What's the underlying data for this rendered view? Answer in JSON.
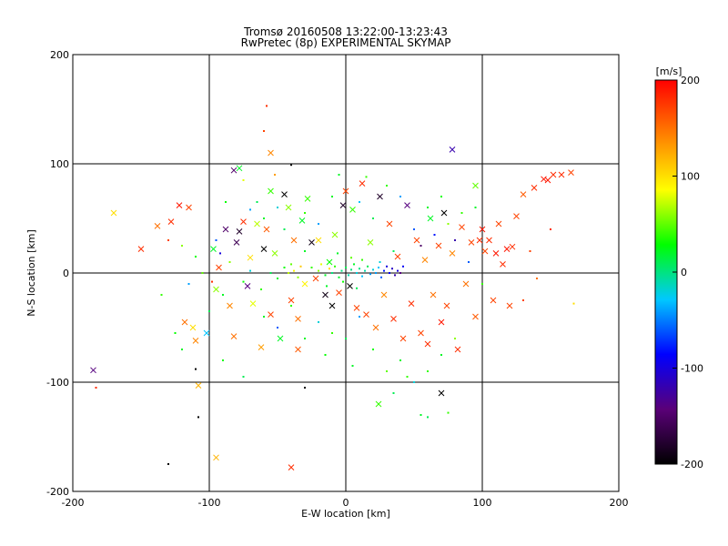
{
  "chart_data": {
    "type": "scatter",
    "title": "Tromsø 20160508 13:22:00-13:23:43",
    "subtitle": "RwPretec (8p) EXPERIMENTAL SKYMAP",
    "xlabel": "E-W location [km]",
    "ylabel": "N-S location [km]",
    "xlim": [
      -200,
      200
    ],
    "ylim": [
      -200,
      200
    ],
    "xticks": [
      "-200",
      "-100",
      "0",
      "100",
      "200"
    ],
    "yticks": [
      "-200",
      "-100",
      "0",
      "100",
      "200"
    ],
    "grid": true,
    "colorbar": {
      "label": "[m/s]",
      "range": [
        -200,
        200
      ],
      "ticks": [
        "200",
        "100",
        "0",
        "-100",
        "-200"
      ],
      "colors": [
        "#000000",
        "#5a0078",
        "#0000ff",
        "#00c8ff",
        "#00ff00",
        "#ffff00",
        "#ff8000",
        "#ff0000"
      ]
    },
    "series": [
      {
        "marker": "x",
        "points": [
          [
            -185,
            -89,
            -140
          ],
          [
            -170,
            55,
            100
          ],
          [
            -150,
            22,
            180
          ],
          [
            -138,
            43,
            150
          ],
          [
            -128,
            47,
            180
          ],
          [
            -122,
            62,
            190
          ],
          [
            -115,
            60,
            170
          ],
          [
            -118,
            -45,
            150
          ],
          [
            -112,
            -50,
            100
          ],
          [
            -110,
            -62,
            140
          ],
          [
            -108,
            -103,
            120
          ],
          [
            -102,
            -55,
            -30
          ],
          [
            -97,
            22,
            20
          ],
          [
            -95,
            -15,
            60
          ],
          [
            -93,
            5,
            170
          ],
          [
            -88,
            40,
            -150
          ],
          [
            -85,
            -30,
            140
          ],
          [
            -82,
            -58,
            150
          ],
          [
            -80,
            28,
            -160
          ],
          [
            -78,
            38,
            -180
          ],
          [
            -75,
            47,
            180
          ],
          [
            -72,
            -12,
            -140
          ],
          [
            -70,
            14,
            100
          ],
          [
            -68,
            -28,
            80
          ],
          [
            -65,
            45,
            70
          ],
          [
            -62,
            -68,
            130
          ],
          [
            -60,
            22,
            -200
          ],
          [
            -58,
            40,
            160
          ],
          [
            -55,
            -38,
            170
          ],
          [
            -52,
            18,
            60
          ],
          [
            -48,
            -60,
            20
          ],
          [
            -45,
            72,
            -200
          ],
          [
            -42,
            60,
            60
          ],
          [
            -40,
            -25,
            170
          ],
          [
            -38,
            30,
            150
          ],
          [
            -35,
            -70,
            160
          ],
          [
            -32,
            48,
            20
          ],
          [
            -30,
            -10,
            90
          ],
          [
            -28,
            68,
            40
          ],
          [
            -25,
            28,
            -190
          ],
          [
            -22,
            -5,
            170
          ],
          [
            -20,
            30,
            100
          ],
          [
            -15,
            -20,
            -190
          ],
          [
            -12,
            10,
            30
          ],
          [
            -10,
            -30,
            -200
          ],
          [
            -8,
            35,
            60
          ],
          [
            -5,
            -18,
            170
          ],
          [
            -2,
            62,
            -180
          ],
          [
            0,
            75,
            170
          ],
          [
            3,
            -12,
            -200
          ],
          [
            5,
            58,
            40
          ],
          [
            8,
            -32,
            170
          ],
          [
            12,
            82,
            180
          ],
          [
            15,
            -38,
            170
          ],
          [
            18,
            28,
            60
          ],
          [
            22,
            -50,
            150
          ],
          [
            25,
            70,
            -180
          ],
          [
            28,
            -20,
            140
          ],
          [
            32,
            45,
            170
          ],
          [
            35,
            -42,
            180
          ],
          [
            38,
            15,
            170
          ],
          [
            42,
            -60,
            170
          ],
          [
            45,
            62,
            -140
          ],
          [
            48,
            -28,
            180
          ],
          [
            52,
            30,
            170
          ],
          [
            55,
            -55,
            170
          ],
          [
            58,
            12,
            140
          ],
          [
            60,
            -65,
            180
          ],
          [
            62,
            50,
            20
          ],
          [
            64,
            -20,
            150
          ],
          [
            68,
            25,
            170
          ],
          [
            70,
            -45,
            190
          ],
          [
            72,
            55,
            -200
          ],
          [
            74,
            -30,
            170
          ],
          [
            78,
            18,
            140
          ],
          [
            78,
            113,
            -120
          ],
          [
            82,
            -70,
            180
          ],
          [
            85,
            42,
            170
          ],
          [
            88,
            -10,
            150
          ],
          [
            92,
            28,
            170
          ],
          [
            95,
            -40,
            160
          ],
          [
            98,
            30,
            180
          ],
          [
            100,
            40,
            190
          ],
          [
            102,
            20,
            170
          ],
          [
            105,
            30,
            180
          ],
          [
            108,
            -25,
            170
          ],
          [
            110,
            18,
            190
          ],
          [
            112,
            45,
            170
          ],
          [
            115,
            8,
            180
          ],
          [
            118,
            22,
            190
          ],
          [
            120,
            -30,
            170
          ],
          [
            122,
            24,
            180
          ],
          [
            125,
            52,
            170
          ],
          [
            130,
            72,
            160
          ],
          [
            138,
            78,
            180
          ],
          [
            145,
            86,
            190
          ],
          [
            148,
            85,
            190
          ],
          [
            152,
            90,
            180
          ],
          [
            158,
            90,
            180
          ],
          [
            165,
            92,
            170
          ],
          [
            95,
            80,
            50
          ],
          [
            -55,
            110,
            140
          ],
          [
            -40,
            -178,
            180
          ],
          [
            -95,
            -169,
            120
          ],
          [
            24,
            -120,
            40
          ],
          [
            -82,
            94,
            -150
          ],
          [
            -78,
            96,
            20
          ],
          [
            -55,
            75,
            40
          ],
          [
            70,
            -110,
            -200
          ],
          [
            -35,
            -42,
            150
          ]
        ]
      },
      {
        "marker": "dot",
        "points": [
          [
            -183,
            -105,
            180
          ],
          [
            -130,
            -175,
            -200
          ],
          [
            -108,
            -132,
            -200
          ],
          [
            -98,
            -8,
            180
          ],
          [
            -92,
            18,
            -100
          ],
          [
            -60,
            130,
            170
          ],
          [
            -58,
            153,
            180
          ],
          [
            -40,
            99,
            -200
          ],
          [
            -52,
            90,
            130
          ],
          [
            -75,
            85,
            80
          ],
          [
            -30,
            20,
            20
          ],
          [
            -25,
            5,
            40
          ],
          [
            -20,
            2,
            60
          ],
          [
            -18,
            8,
            80
          ],
          [
            -15,
            -2,
            20
          ],
          [
            -12,
            4,
            100
          ],
          [
            -10,
            0,
            0
          ],
          [
            -8,
            6,
            40
          ],
          [
            -5,
            -4,
            20
          ],
          [
            -3,
            2,
            0
          ],
          [
            0,
            5,
            10
          ],
          [
            2,
            -2,
            -10
          ],
          [
            4,
            3,
            0
          ],
          [
            6,
            8,
            20
          ],
          [
            8,
            0,
            -20
          ],
          [
            10,
            4,
            0
          ],
          [
            12,
            -3,
            -30
          ],
          [
            14,
            2,
            -10
          ],
          [
            16,
            6,
            10
          ],
          [
            18,
            -1,
            -40
          ],
          [
            20,
            3,
            -20
          ],
          [
            22,
            0,
            -40
          ],
          [
            24,
            5,
            -30
          ],
          [
            26,
            -4,
            -60
          ],
          [
            28,
            2,
            -80
          ],
          [
            30,
            6,
            -100
          ],
          [
            32,
            0,
            -90
          ],
          [
            34,
            4,
            -110
          ],
          [
            36,
            -2,
            -120
          ],
          [
            38,
            2,
            -100
          ],
          [
            40,
            0,
            -140
          ],
          [
            42,
            6,
            -90
          ],
          [
            -45,
            5,
            30
          ],
          [
            -42,
            0,
            70
          ],
          [
            -40,
            8,
            50
          ],
          [
            -38,
            2,
            90
          ],
          [
            -35,
            -4,
            60
          ],
          [
            -33,
            6,
            110
          ],
          [
            -50,
            -5,
            20
          ],
          [
            -55,
            0,
            10
          ],
          [
            -62,
            -15,
            40
          ],
          [
            -70,
            2,
            -20
          ],
          [
            -75,
            -8,
            30
          ],
          [
            -85,
            10,
            60
          ],
          [
            -90,
            -20,
            20
          ],
          [
            -95,
            30,
            -60
          ],
          [
            -100,
            -35,
            10
          ],
          [
            -105,
            0,
            50
          ],
          [
            -110,
            15,
            30
          ],
          [
            -115,
            -10,
            -40
          ],
          [
            -120,
            25,
            60
          ],
          [
            -125,
            -55,
            30
          ],
          [
            -130,
            30,
            170
          ],
          [
            -135,
            -20,
            40
          ],
          [
            -60,
            50,
            20
          ],
          [
            -50,
            60,
            -20
          ],
          [
            -45,
            40,
            10
          ],
          [
            -30,
            55,
            40
          ],
          [
            -20,
            45,
            -40
          ],
          [
            -10,
            70,
            20
          ],
          [
            10,
            65,
            -30
          ],
          [
            20,
            50,
            10
          ],
          [
            30,
            80,
            40
          ],
          [
            40,
            70,
            -40
          ],
          [
            50,
            40,
            -60
          ],
          [
            55,
            25,
            -150
          ],
          [
            60,
            60,
            20
          ],
          [
            65,
            35,
            -80
          ],
          [
            70,
            70,
            30
          ],
          [
            75,
            45,
            60
          ],
          [
            80,
            30,
            -120
          ],
          [
            85,
            55,
            40
          ],
          [
            90,
            10,
            -60
          ],
          [
            95,
            60,
            20
          ],
          [
            100,
            -10,
            40
          ],
          [
            -60,
            -40,
            20
          ],
          [
            -50,
            -50,
            -60
          ],
          [
            -40,
            -30,
            40
          ],
          [
            -30,
            -60,
            20
          ],
          [
            -20,
            -45,
            -20
          ],
          [
            -10,
            -55,
            40
          ],
          [
            0,
            -60,
            10
          ],
          [
            10,
            -40,
            -40
          ],
          [
            20,
            -70,
            30
          ],
          [
            30,
            -90,
            50
          ],
          [
            40,
            -80,
            20
          ],
          [
            50,
            -100,
            -20
          ],
          [
            60,
            -90,
            40
          ],
          [
            70,
            -75,
            20
          ],
          [
            80,
            -60,
            60
          ],
          [
            55,
            -130,
            20
          ],
          [
            60,
            -132,
            10
          ],
          [
            75,
            -128,
            40
          ],
          [
            -30,
            -105,
            -200
          ],
          [
            -75,
            -95,
            10
          ],
          [
            -90,
            -80,
            30
          ],
          [
            -110,
            -88,
            -200
          ],
          [
            -120,
            -70,
            20
          ],
          [
            167,
            -28,
            100
          ],
          [
            150,
            40,
            180
          ],
          [
            135,
            20,
            170
          ],
          [
            140,
            -5,
            150
          ],
          [
            130,
            -25,
            170
          ],
          [
            45,
            -95,
            40
          ],
          [
            35,
            -110,
            10
          ],
          [
            -70,
            58,
            -40
          ],
          [
            -65,
            65,
            10
          ],
          [
            -88,
            65,
            30
          ],
          [
            -5,
            90,
            20
          ],
          [
            15,
            88,
            40
          ],
          [
            5,
            -85,
            20
          ],
          [
            -15,
            -75,
            30
          ],
          [
            25,
            10,
            -20
          ],
          [
            35,
            20,
            10
          ],
          [
            -2,
            -8,
            30
          ],
          [
            4,
            14,
            50
          ],
          [
            -6,
            18,
            20
          ],
          [
            8,
            -14,
            10
          ],
          [
            12,
            12,
            40
          ],
          [
            -14,
            -12,
            20
          ]
        ]
      }
    ]
  }
}
